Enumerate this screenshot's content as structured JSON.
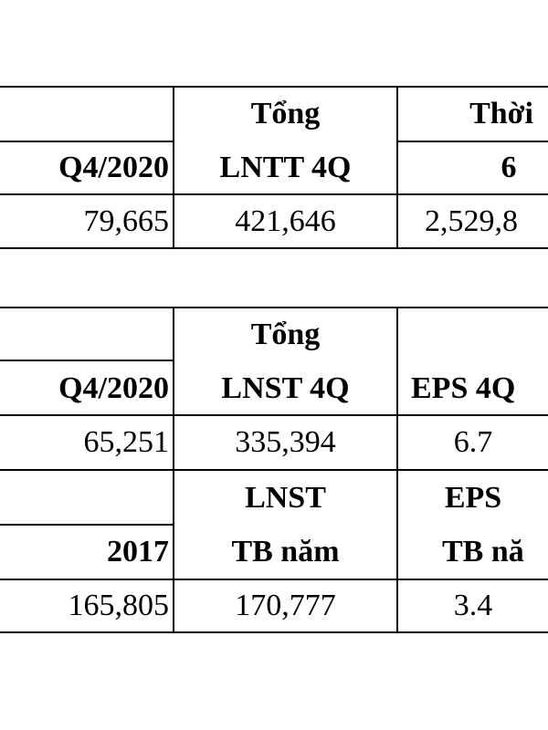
{
  "table_1": {
    "period": "Q4/2020",
    "total_label": [
      "Tổng",
      "LNTT 4Q"
    ],
    "third_label": [
      "Thời",
      "6"
    ],
    "values": [
      "79,665",
      "421,646",
      "2,529,8"
    ]
  },
  "table_2": {
    "section_1": {
      "period": "Q4/2020",
      "total_label": [
        "Tổng",
        "LNST 4Q"
      ],
      "eps_label": "EPS 4Q",
      "values": [
        "65,251",
        "335,394",
        "6.7"
      ]
    },
    "section_2": {
      "period": "2017",
      "total_label": [
        "LNST",
        "TB năm"
      ],
      "eps_label": [
        "EPS",
        "TB nă"
      ],
      "values": [
        "165,805",
        "170,777",
        "3.4"
      ]
    }
  }
}
